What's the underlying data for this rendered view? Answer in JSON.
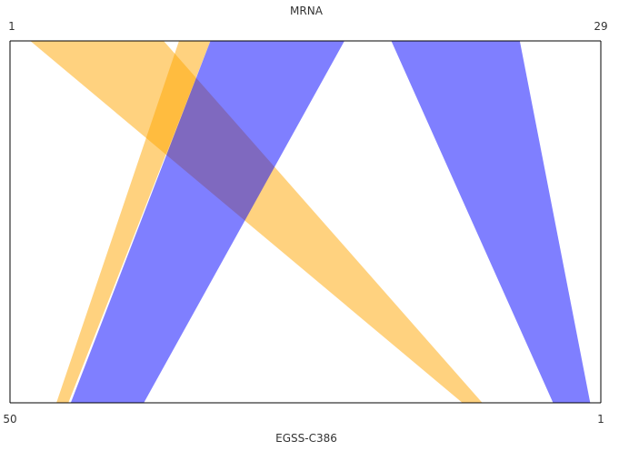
{
  "chart_data": {
    "type": "synteny",
    "top_axis": {
      "label": "MRNA",
      "start_label": "1",
      "end_label": "29",
      "range": [
        1,
        29
      ]
    },
    "bottom_axis": {
      "label": "EGSS-C386",
      "start_label": "50",
      "end_label": "1",
      "range": [
        50,
        1
      ]
    },
    "colors": {
      "orange": "#ffa500",
      "blue": "#0000ff",
      "axis": "#000000",
      "text": "#333333"
    },
    "opacity": 0.5,
    "links": [
      {
        "top": [
          1.96,
          8.28
        ],
        "bottom": [
          12.48,
          10.83
        ],
        "color": "orange"
      },
      {
        "top": [
          9.01,
          10.5
        ],
        "bottom": [
          46.15,
          45.16
        ],
        "color": "orange"
      },
      {
        "top": [
          10.5,
          16.85
        ],
        "bottom": [
          44.96,
          38.9
        ],
        "color": "blue"
      },
      {
        "top": [
          19.07,
          25.16
        ],
        "bottom": [
          4.96,
          1.88
        ],
        "color": "blue"
      }
    ]
  }
}
